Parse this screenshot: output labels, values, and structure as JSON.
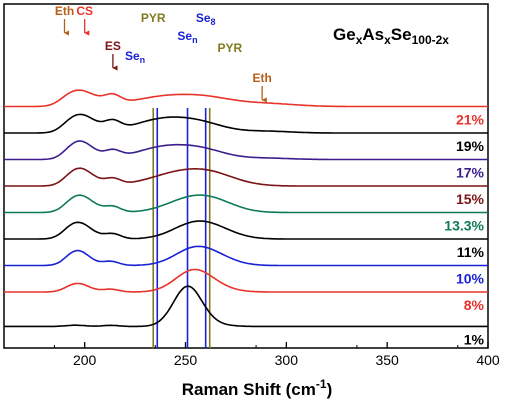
{
  "chart_data": {
    "type": "line",
    "title": "",
    "xlabel": "Raman Shift (cm",
    "xlabel_sup": "-1",
    "xlabel_end": ")",
    "ylabel": "",
    "xlim": [
      160,
      400
    ],
    "xticks": [
      200,
      250,
      300,
      350,
      400
    ],
    "formula": {
      "base1": "Ge",
      "sub1": "x",
      "base2": "As",
      "sub2": "x",
      "base3": "Se",
      "sub3": "100-2x"
    },
    "series": [
      {
        "name": "21%",
        "color": "#e8332b",
        "offset": 9.0,
        "scale": 0.85,
        "peaks": [
          [
            196,
            0.75,
            9
          ],
          [
            214,
            0.35,
            4
          ],
          [
            240,
            0.43,
            16
          ],
          [
            262,
            0.28,
            13
          ],
          [
            290,
            0.13,
            14
          ]
        ]
      },
      {
        "name": "19%",
        "color": "#000000",
        "offset": 8.0,
        "scale": 0.85,
        "peaks": [
          [
            197,
            0.85,
            8
          ],
          [
            214,
            0.38,
            4
          ],
          [
            238,
            0.58,
            14
          ],
          [
            258,
            0.35,
            12
          ],
          [
            290,
            0.08,
            12
          ]
        ]
      },
      {
        "name": "17%",
        "color": "#3b1e8c",
        "offset": 7.0,
        "scale": 0.85,
        "peaks": [
          [
            197,
            0.85,
            7
          ],
          [
            214,
            0.32,
            4
          ],
          [
            238,
            0.5,
            13
          ],
          [
            258,
            0.4,
            12
          ],
          [
            290,
            0.06,
            12
          ]
        ]
      },
      {
        "name": "15%",
        "color": "#7a1416",
        "offset": 6.0,
        "scale": 0.85,
        "peaks": [
          [
            197,
            0.82,
            7
          ],
          [
            214,
            0.28,
            4
          ],
          [
            244,
            0.45,
            14
          ],
          [
            262,
            0.5,
            13
          ]
        ]
      },
      {
        "name": "13.3%",
        "color": "#0f7a5a",
        "offset": 5.0,
        "scale": 0.85,
        "peaks": [
          [
            197,
            0.8,
            7
          ],
          [
            214,
            0.25,
            4
          ],
          [
            252,
            0.55,
            12
          ],
          [
            265,
            0.35,
            11
          ]
        ]
      },
      {
        "name": "11%",
        "color": "#000000",
        "offset": 4.0,
        "scale": 0.85,
        "peaks": [
          [
            196,
            0.78,
            7
          ],
          [
            214,
            0.22,
            4
          ],
          [
            255,
            0.7,
            11
          ],
          [
            268,
            0.2,
            10
          ]
        ]
      },
      {
        "name": "10%",
        "color": "#1a22d6",
        "offset": 3.0,
        "scale": 0.85,
        "peaks": [
          [
            196,
            0.7,
            6
          ],
          [
            213,
            0.18,
            4
          ],
          [
            255,
            0.78,
            10
          ],
          [
            268,
            0.18,
            9
          ]
        ]
      },
      {
        "name": "8%",
        "color": "#e8332b",
        "offset": 2.0,
        "scale": 0.85,
        "peaks": [
          [
            196,
            0.4,
            6
          ],
          [
            213,
            0.12,
            4
          ],
          [
            254,
            0.95,
            9
          ],
          [
            266,
            0.12,
            9
          ]
        ]
      },
      {
        "name": "1%",
        "color": "#000000",
        "offset": 0.7,
        "scale": 0.85,
        "peaks": [
          [
            195,
            0.06,
            5
          ],
          [
            213,
            0.05,
            4
          ],
          [
            251,
            1.75,
            7
          ],
          [
            262,
            0.1,
            8
          ]
        ]
      }
    ],
    "vertical_lines": [
      {
        "label": "PYR",
        "x": 234,
        "color": "#817a1e"
      },
      {
        "label": "Se",
        "label_sub": "n",
        "x": 236,
        "color": "#1a22d6",
        "label_x": 225
      },
      {
        "label": "Se",
        "label_sub": "n",
        "x": 251,
        "color": "#1a22d6"
      },
      {
        "label": "Se",
        "label_sub": "8",
        "x": 260,
        "color": "#1a22d6"
      },
      {
        "label": "PYR",
        "x": 262,
        "color": "#817a1e",
        "label_x": 272
      }
    ],
    "annotations": [
      {
        "text": "Eth",
        "x": 190,
        "color": "#b45f17"
      },
      {
        "text": "CS",
        "x": 200,
        "color": "#e8332b"
      },
      {
        "text": "ES",
        "x": 214,
        "color": "#7a1416"
      },
      {
        "text": "Eth",
        "x": 288,
        "color": "#b45f17"
      }
    ],
    "grid": false,
    "legend": "none"
  }
}
